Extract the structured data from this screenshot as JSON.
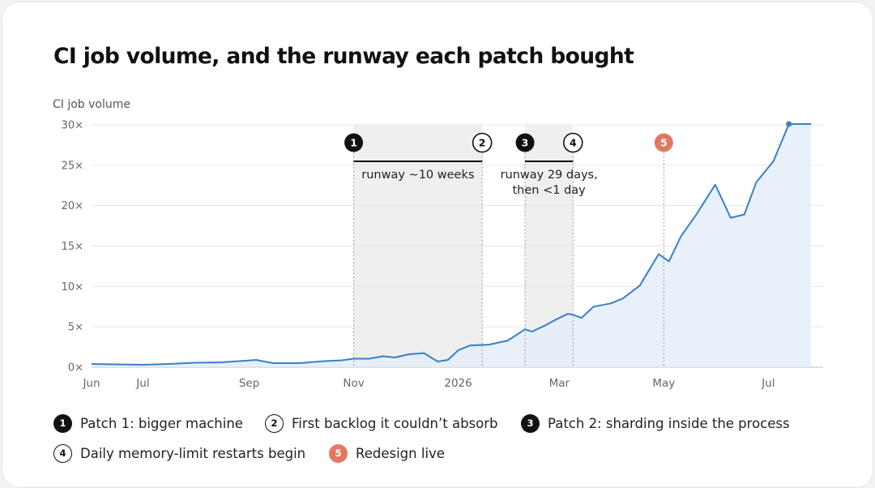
{
  "title": "CI job volume, and the runway each patch bought",
  "chart_data": {
    "type": "area",
    "title": "CI job volume, and the runway each patch bought",
    "ylabel": "CI job volume",
    "xlabel": "",
    "ylim": [
      0,
      30
    ],
    "yticks": [
      0,
      5,
      10,
      15,
      20,
      25,
      30
    ],
    "ytick_labels": [
      "0×",
      "5×",
      "10×",
      "15×",
      "20×",
      "25×",
      "30×"
    ],
    "grid": true,
    "xticks": [
      {
        "label": "Jun",
        "date": "2025-06-01"
      },
      {
        "label": "Jul",
        "date": "2025-07-01"
      },
      {
        "label": "Sep",
        "date": "2025-09-01"
      },
      {
        "label": "Nov",
        "date": "2025-11-01"
      },
      {
        "label": "2026",
        "date": "2026-01-01"
      },
      {
        "label": "Mar",
        "date": "2026-03-01"
      },
      {
        "label": "May",
        "date": "2026-05-01"
      },
      {
        "label": "Jul",
        "date": "2026-07-01"
      }
    ],
    "x": [
      "2025-06-01",
      "2025-06-16",
      "2025-07-01",
      "2025-07-16",
      "2025-07-31",
      "2025-08-15",
      "2025-08-30",
      "2025-09-05",
      "2025-09-15",
      "2025-09-30",
      "2025-10-15",
      "2025-10-25",
      "2025-11-01",
      "2025-11-10",
      "2025-11-18",
      "2025-11-25",
      "2025-12-03",
      "2025-12-12",
      "2025-12-20",
      "2025-12-26",
      "2026-01-01",
      "2026-01-08",
      "2026-01-19",
      "2026-01-30",
      "2026-02-09",
      "2026-02-13",
      "2026-02-20",
      "2026-02-27",
      "2026-03-06",
      "2026-03-09",
      "2026-03-14",
      "2026-03-21",
      "2026-03-31",
      "2026-04-07",
      "2026-04-17",
      "2026-04-28",
      "2026-05-04",
      "2026-05-11",
      "2026-05-20",
      "2026-05-31",
      "2026-06-09",
      "2026-06-17",
      "2026-06-24",
      "2026-07-04",
      "2026-07-13",
      "2026-07-26"
    ],
    "y": [
      0.4,
      0.35,
      0.3,
      0.4,
      0.55,
      0.6,
      0.8,
      0.9,
      0.5,
      0.5,
      0.75,
      0.85,
      1.05,
      1.05,
      1.35,
      1.2,
      1.6,
      1.75,
      0.7,
      0.9,
      2.1,
      2.7,
      2.8,
      3.3,
      4.7,
      4.4,
      5.1,
      5.9,
      6.6,
      6.5,
      6.1,
      7.5,
      7.9,
      8.5,
      10.1,
      14.0,
      13.1,
      16.2,
      18.9,
      22.6,
      18.5,
      18.9,
      22.9,
      25.5,
      30.1,
      30.1
    ],
    "color": "#3a7fc6",
    "fill": "#e4eef8",
    "shaded_ranges": [
      {
        "from": "2025-11-01",
        "to": "2026-01-15",
        "label": "runway ~10 weeks"
      },
      {
        "from": "2026-02-09",
        "to": "2026-03-09",
        "label": "runway 29 days, then <1 day"
      }
    ],
    "markers": [
      {
        "id": "1",
        "date": "2025-11-01",
        "style": "filled"
      },
      {
        "id": "2",
        "date": "2026-01-15",
        "style": "outline"
      },
      {
        "id": "3",
        "date": "2026-02-09",
        "style": "filled"
      },
      {
        "id": "4",
        "date": "2026-03-09",
        "style": "outline"
      },
      {
        "id": "5",
        "date": "2026-05-01",
        "style": "accent"
      }
    ],
    "annotation_lines": {
      "runway1": [
        "runway ~10 weeks"
      ],
      "runway2": [
        "runway 29 days,",
        "then <1 day"
      ]
    }
  },
  "legend": [
    {
      "id": "1",
      "label": "Patch 1: bigger machine",
      "style": "filled"
    },
    {
      "id": "2",
      "label": "First backlog it couldn’t absorb",
      "style": "outline"
    },
    {
      "id": "3",
      "label": "Patch 2: sharding inside the process",
      "style": "filled"
    },
    {
      "id": "4",
      "label": "Daily memory-limit restarts begin",
      "style": "outline"
    },
    {
      "id": "5",
      "label": "Redesign live",
      "style": "accent"
    }
  ],
  "colors": {
    "line": "#3a7fc6",
    "area": "#e4eef8",
    "shade": "#efefef",
    "accent": "#e07a5f",
    "text": "#111111",
    "grid": "#e6e6e6"
  }
}
